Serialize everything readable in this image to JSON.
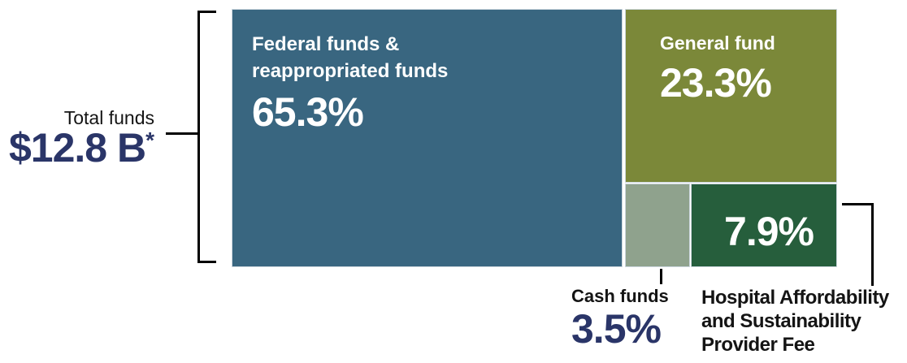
{
  "chart_data": {
    "type": "treemap",
    "total": {
      "label": "Total funds",
      "value": 12.8,
      "value_display": "$12.8 B",
      "asterisk": "*"
    },
    "segments": [
      {
        "name": "Federal funds & reappropriated funds",
        "name_lines": [
          "Federal funds &",
          "reappropriated funds"
        ],
        "value": 65.3,
        "pct_label": "65.3%",
        "color": "#396680",
        "label_position": "inside"
      },
      {
        "name": "General fund",
        "name_lines": [
          "General fund"
        ],
        "value": 23.3,
        "pct_label": "23.3%",
        "color": "#7b8839",
        "label_position": "inside"
      },
      {
        "name": "Cash funds",
        "name_lines": [
          "Cash funds"
        ],
        "value": 3.5,
        "pct_label": "3.5%",
        "color": "#8fa28d",
        "label_position": "below-callout"
      },
      {
        "name": "Hospital Affordability and Sustainability Provider Fee",
        "name_lines": [
          "Hospital Affordability",
          "and Sustainability",
          "Provider Fee"
        ],
        "value": 7.9,
        "pct_label": "7.9%",
        "color": "#265e3c",
        "label_position": "inside-pct-with-callout-name"
      }
    ],
    "legend": "none",
    "grid": "off"
  },
  "colors": {
    "accent_navy": "#2a3568",
    "text_black": "#141414",
    "tile_stroke": "#ccd6de",
    "background": "#ffffff"
  }
}
